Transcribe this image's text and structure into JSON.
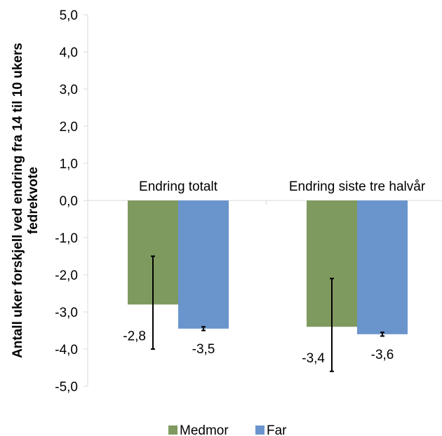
{
  "chart_data": {
    "type": "bar",
    "ylabel": "Antall uker forskjell ved endring fra 14 til 10 ukers fedrekvote",
    "ylabel_lines": [
      "Antall uker forskjell ved endring fra 14 til 10 ukers",
      "fedrekvote"
    ],
    "ylim": [
      -5,
      5
    ],
    "ytick_values": [
      5,
      4,
      3,
      2,
      1,
      0,
      -1,
      -2,
      -3,
      -4,
      -5
    ],
    "ytick_labels": [
      "5,0",
      "4,0",
      "3,0",
      "2,0",
      "1,0",
      "0,0",
      "-1,0",
      "-2,0",
      "-3,0",
      "-4,0",
      "-5,0"
    ],
    "categories": [
      "Endring totalt",
      "Endring siste tre halvår"
    ],
    "legend_position": "bottom",
    "grid": false,
    "series": [
      {
        "name": "Medmor",
        "color": "#7f9a5f",
        "values": [
          -2.8,
          -3.4
        ],
        "value_labels": [
          "-2,8",
          "-3,4"
        ],
        "error_low": [
          -4.0,
          -4.6
        ],
        "error_high": [
          -1.5,
          -2.1
        ]
      },
      {
        "name": "Far",
        "color": "#6a94cc",
        "values": [
          -3.45,
          -3.6
        ],
        "value_labels": [
          "-3,5",
          "-3,6"
        ],
        "error_low": [
          -3.5,
          -3.65
        ],
        "error_high": [
          -3.4,
          -3.55
        ]
      }
    ]
  }
}
